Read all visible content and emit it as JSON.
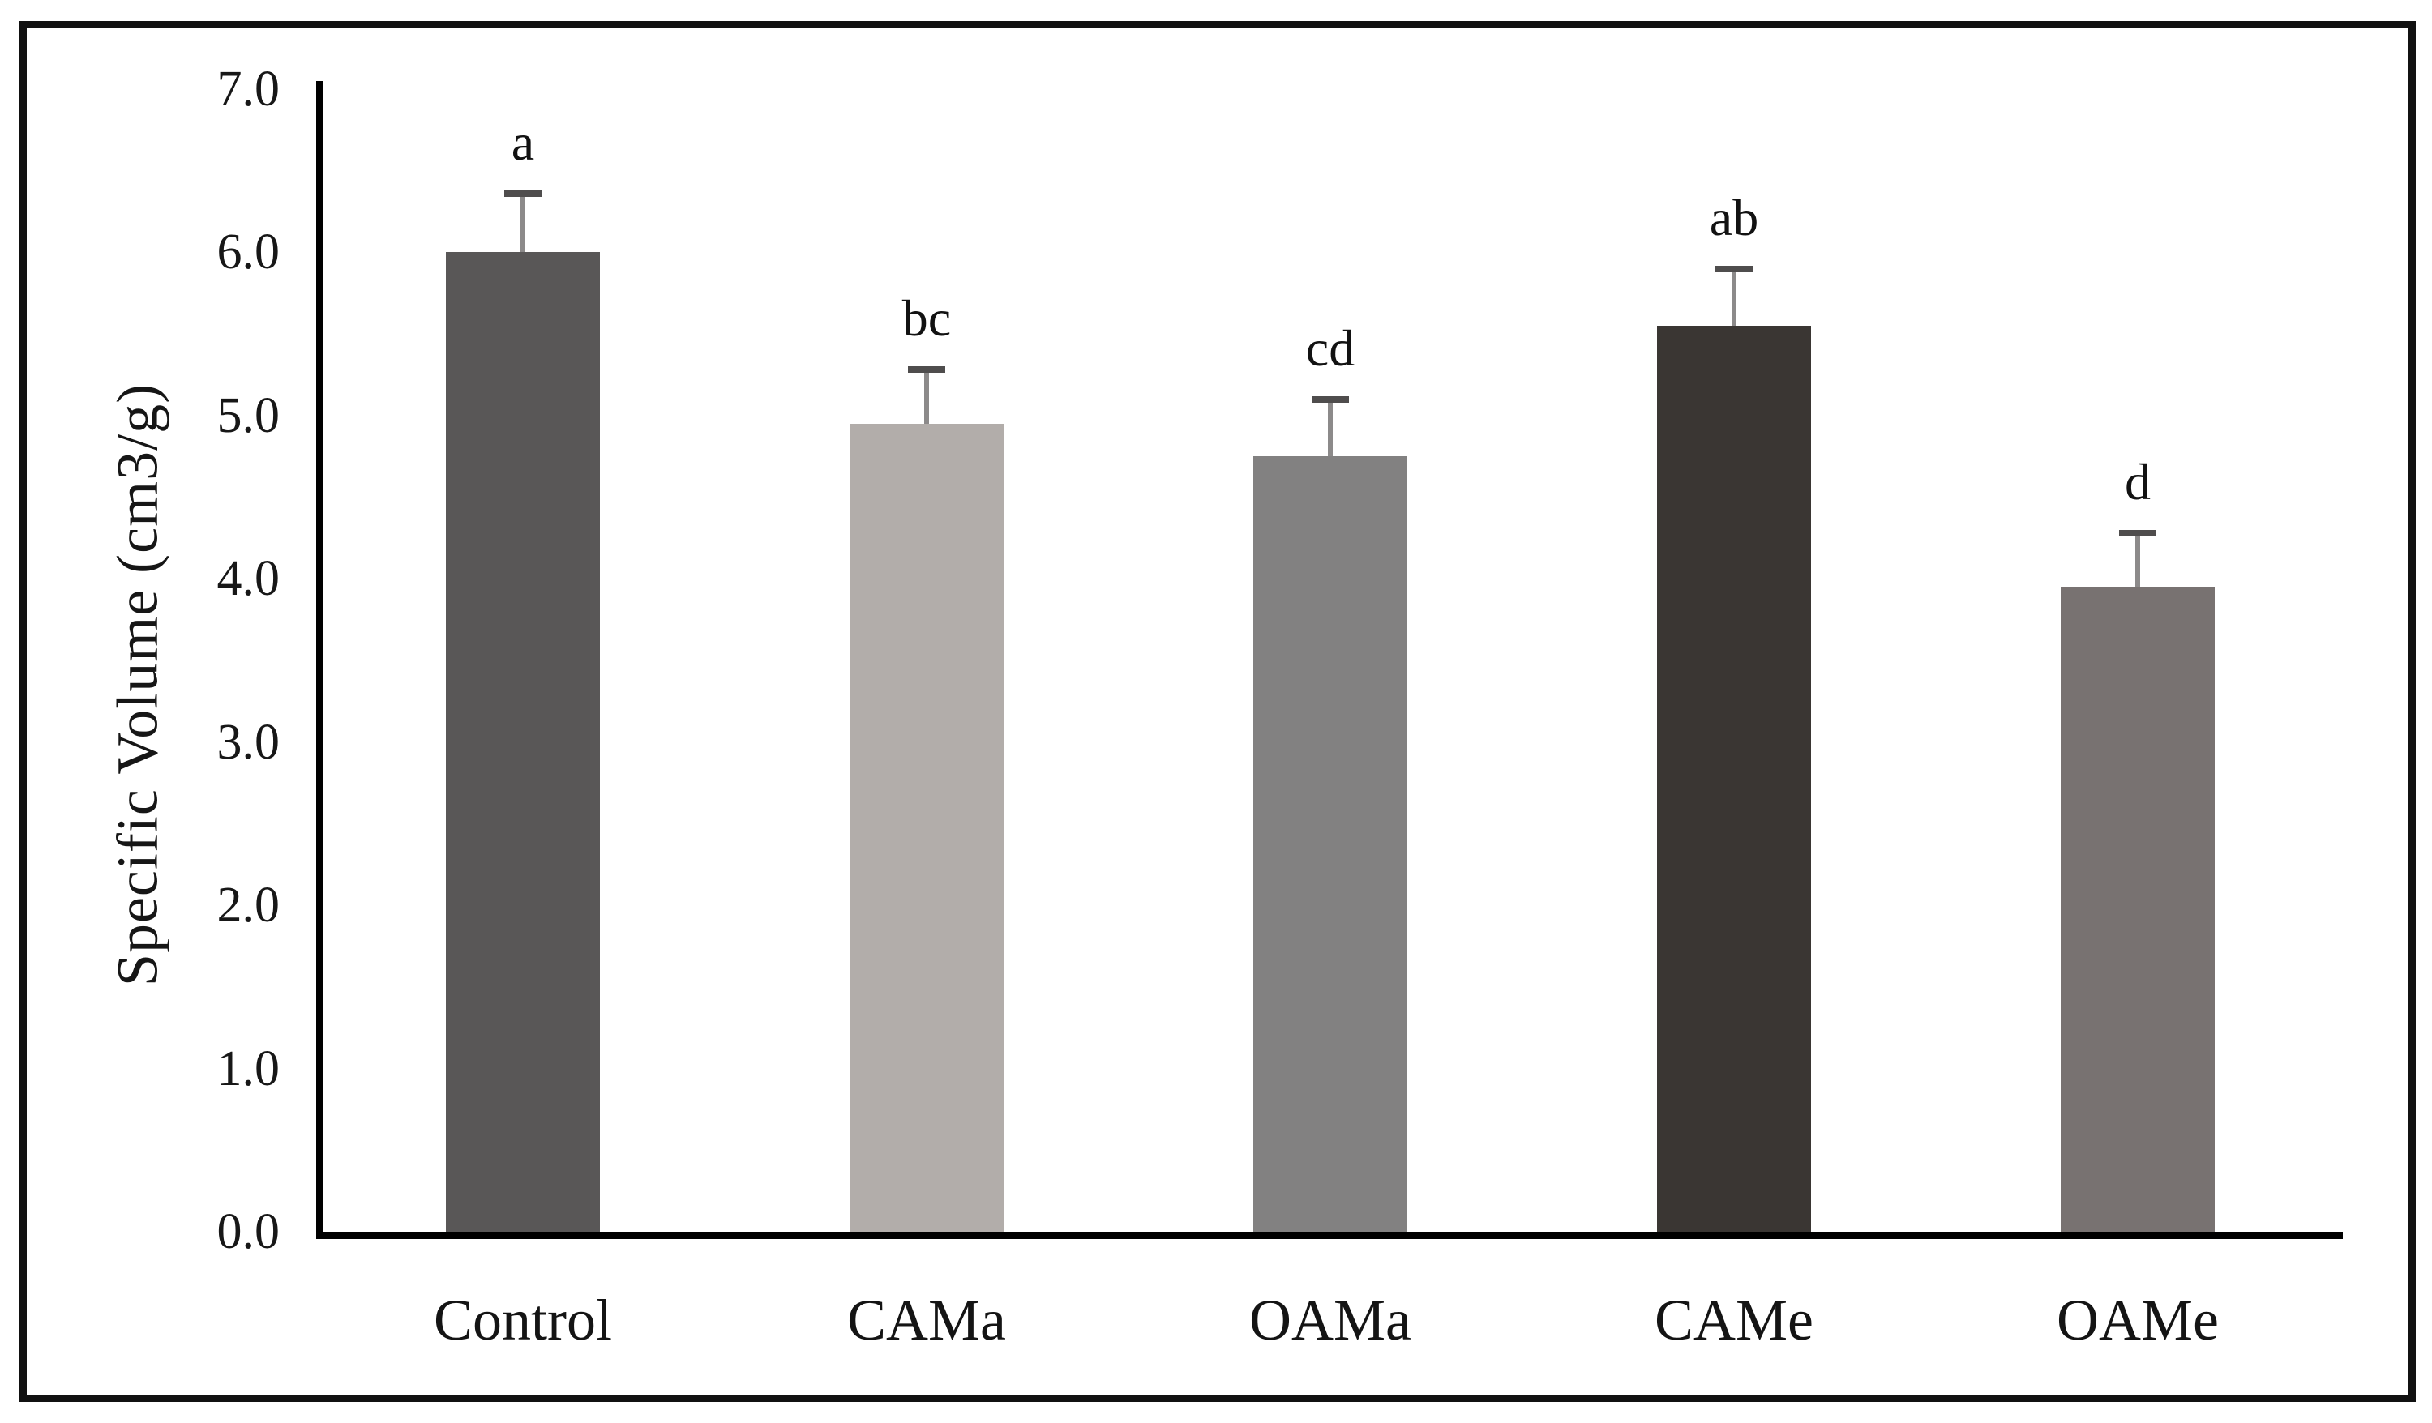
{
  "figure": {
    "background": "#ffffff",
    "border_color": "#111111"
  },
  "chart_data": {
    "type": "bar",
    "title": "",
    "xlabel": "",
    "ylabel": "Specific Volume (cm3/g)",
    "ylim": [
      0.0,
      7.0
    ],
    "ytick_interval": 1.0,
    "yticks": [
      "7.0",
      "6.0",
      "5.0",
      "4.0",
      "3.0",
      "2.0",
      "1.0",
      "0.0"
    ],
    "categories": [
      "Control",
      "CAMa",
      "OAMa",
      "CAMe",
      "OAMe"
    ],
    "values": [
      6.0,
      4.95,
      4.75,
      5.55,
      3.95
    ],
    "error_bars": [
      0.38,
      0.35,
      0.37,
      0.37,
      0.35
    ],
    "sig_letters": [
      "a",
      "bc",
      "cd",
      "ab",
      "d"
    ],
    "bar_colors": [
      "#595757",
      "#b2adaa",
      "#828181",
      "#3a3633",
      "#787271"
    ],
    "error_line_color": "#8c8a8a",
    "error_cap_color": "#4f4d4d",
    "axis_color": "#000000",
    "grid": false,
    "legend_position": "none"
  }
}
